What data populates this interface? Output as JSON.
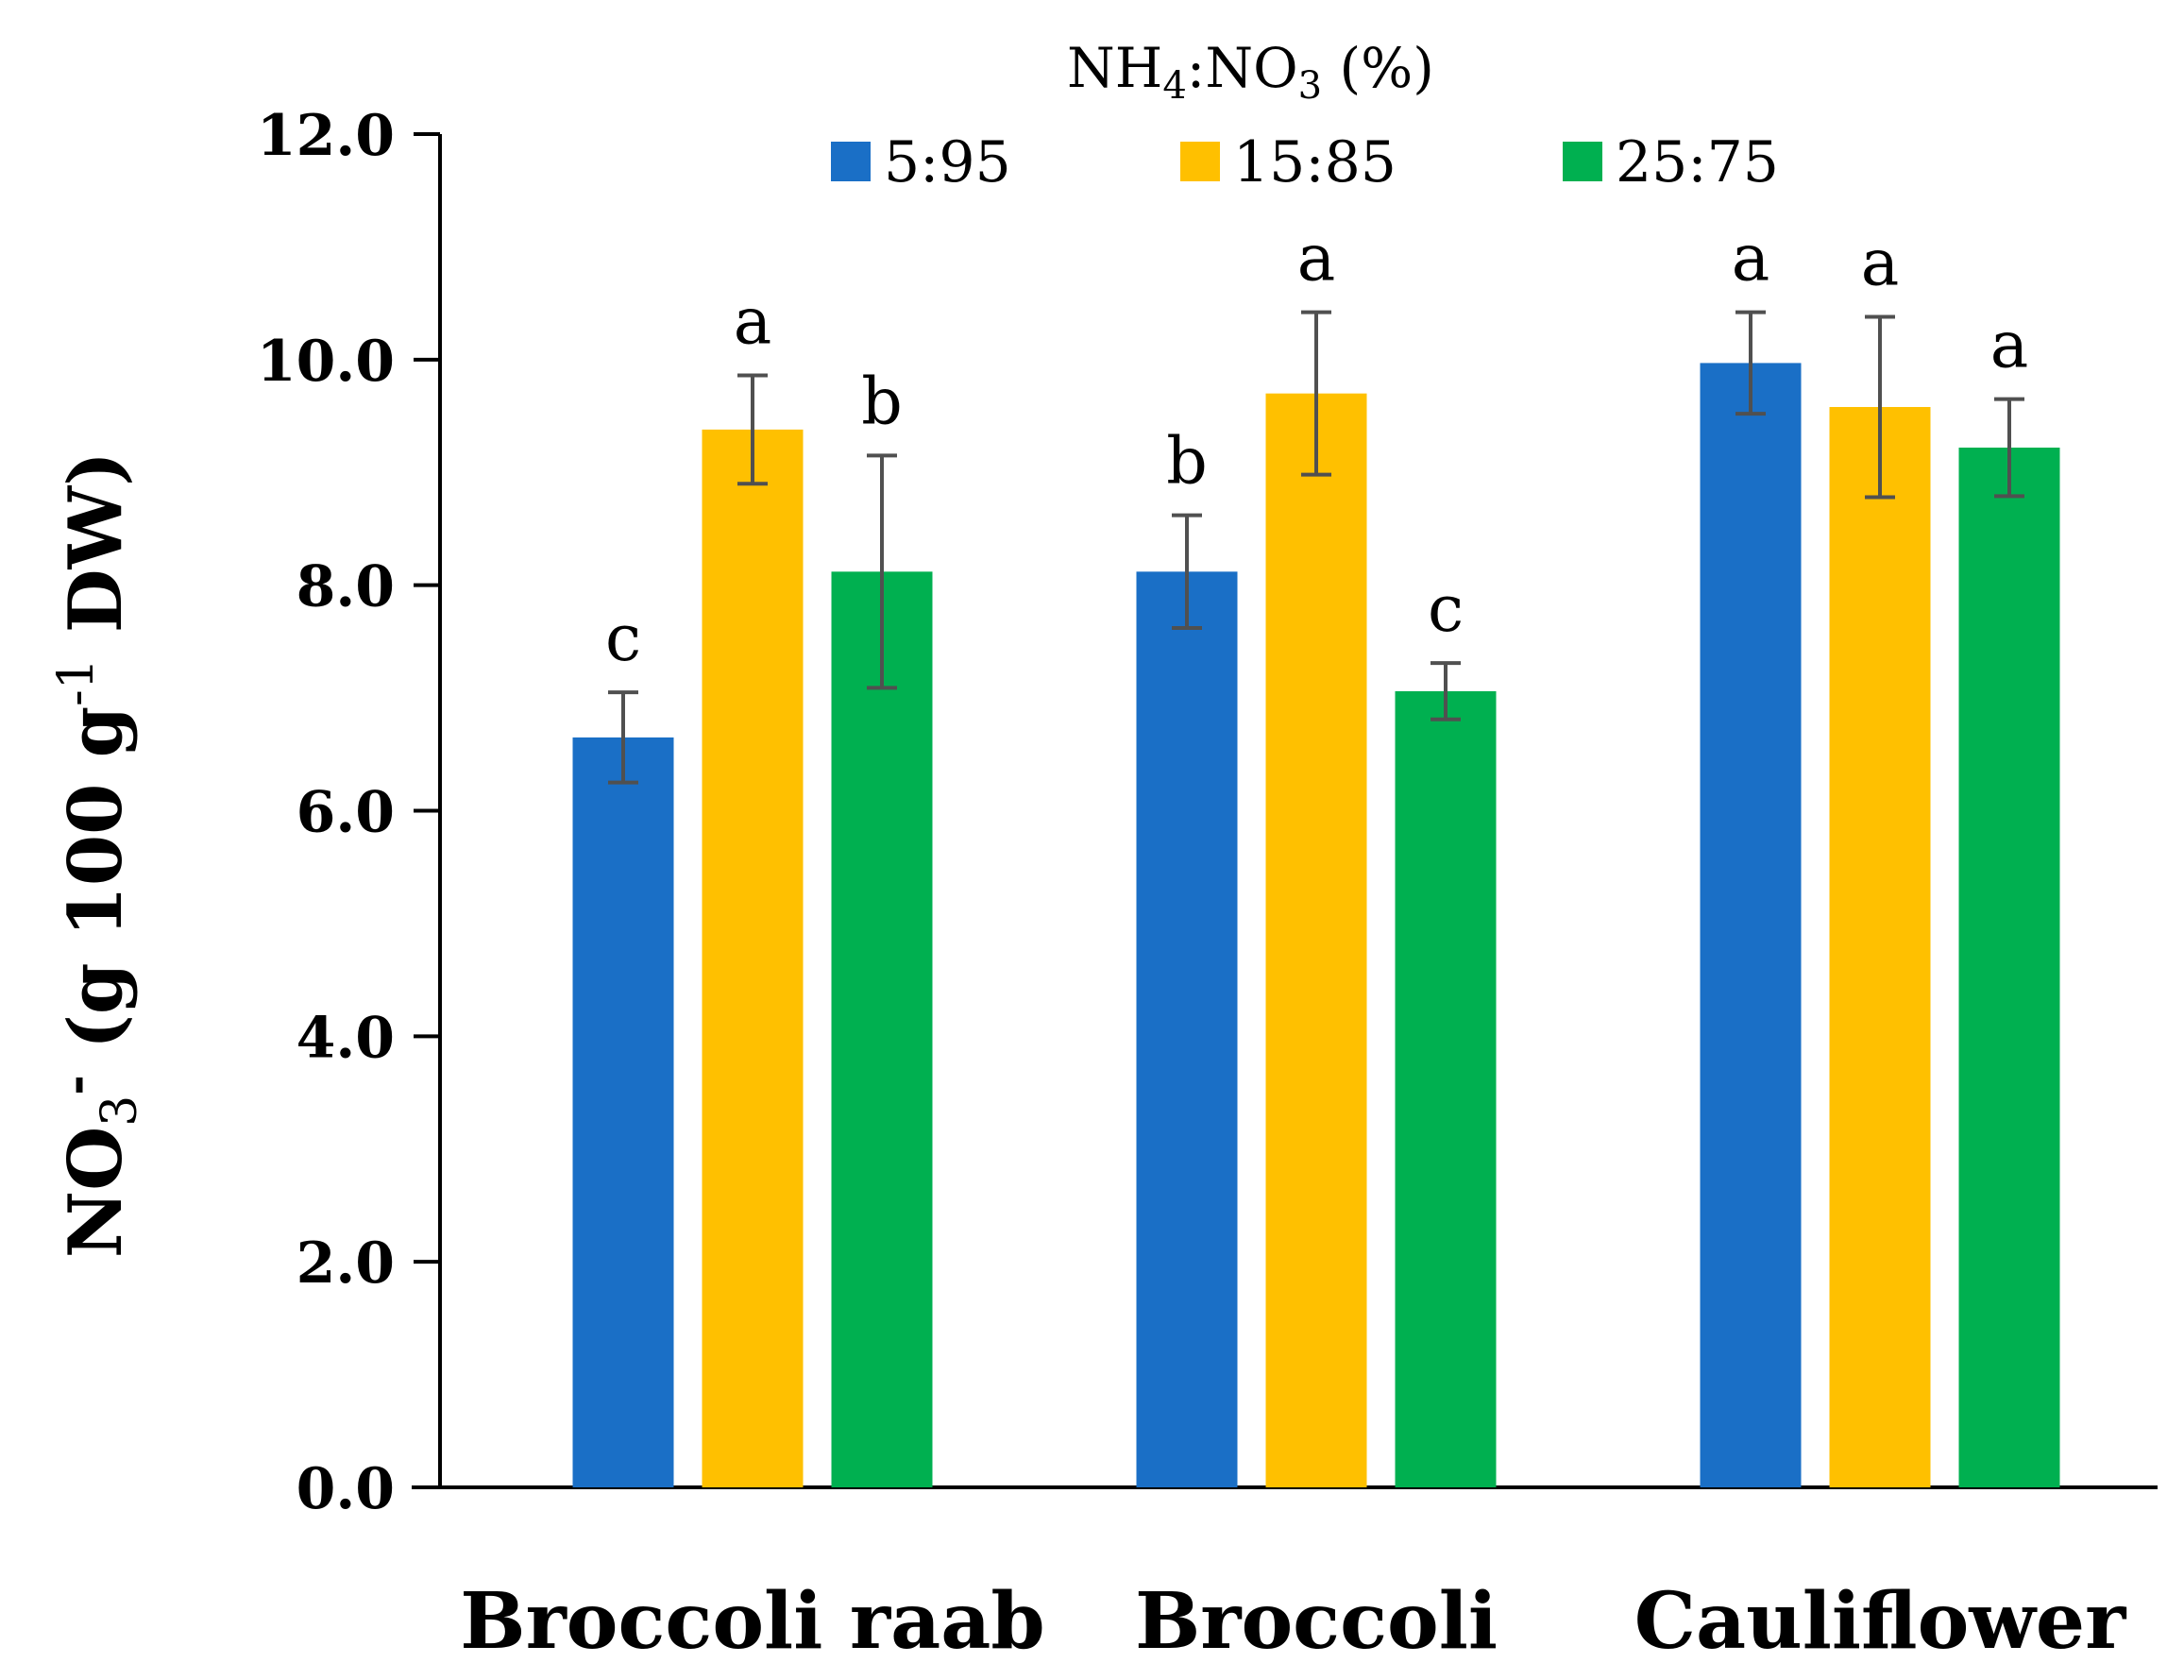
{
  "chart_data": {
    "type": "bar",
    "title": "",
    "ylabel": {
      "main": "NO",
      "sub": "3",
      "sup": "-",
      "unit_open": " (g 100 g",
      "unit_sup": "-1",
      "unit_close": " DW)"
    },
    "xlabel": "",
    "ylim": [
      0,
      12
    ],
    "yticks": [
      0,
      2,
      4,
      6,
      8,
      10,
      12
    ],
    "ytick_labels": [
      "0.0",
      "2.0",
      "4.0",
      "6.0",
      "8.0",
      "10.0",
      "12.0"
    ],
    "categories": [
      "Broccoli raab",
      "Broccoli",
      "Cauliflower"
    ],
    "legend": {
      "title": {
        "part1": "NH",
        "sub1": "4",
        "part2": ":NO",
        "sub2": "3",
        "part3": "  (%)"
      },
      "position": "top-center"
    },
    "series": [
      {
        "name": "5:95",
        "color": "#1a6fc6",
        "values": [
          6.65,
          8.12,
          9.97
        ],
        "errors": [
          0.4,
          0.5,
          0.45
        ],
        "letters": [
          "c",
          "b",
          "a"
        ]
      },
      {
        "name": "15:85",
        "color": "#ffc000",
        "values": [
          9.38,
          9.7,
          9.58
        ],
        "errors": [
          0.48,
          0.72,
          0.8
        ],
        "letters": [
          "a",
          "a",
          "a"
        ]
      },
      {
        "name": "25:75",
        "color": "#00b050",
        "values": [
          8.12,
          7.06,
          9.22
        ],
        "errors": [
          1.03,
          0.25,
          0.43
        ],
        "letters": [
          "b",
          "c",
          "a"
        ]
      }
    ],
    "error_bar_color": "#505050"
  }
}
